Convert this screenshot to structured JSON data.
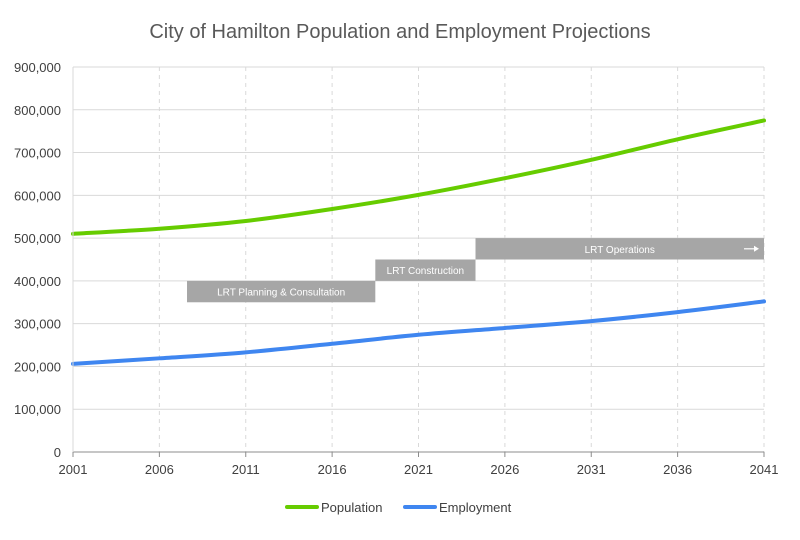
{
  "chart_data": {
    "type": "line",
    "title": "City of Hamilton Population and Employment Projections",
    "xlabel": "",
    "ylabel": "",
    "xlim": [
      2001,
      2041
    ],
    "ylim": [
      0,
      900000
    ],
    "x_ticks": [
      2001,
      2006,
      2011,
      2016,
      2021,
      2026,
      2031,
      2036,
      2041
    ],
    "x_tick_labels": [
      "2001",
      "2006",
      "2011",
      "2016",
      "2021",
      "2026",
      "2031",
      "2036",
      "2041"
    ],
    "y_ticks": [
      0,
      100000,
      200000,
      300000,
      400000,
      500000,
      600000,
      700000,
      800000,
      900000
    ],
    "y_tick_labels": [
      "0",
      "100,000",
      "200,000",
      "300,000",
      "400,000",
      "500,000",
      "600,000",
      "700,000",
      "800,000",
      "900,000"
    ],
    "grid": {
      "horizontal": "solid",
      "vertical": "dashed"
    },
    "legend_position": "bottom",
    "series": [
      {
        "name": "Population",
        "color": "#66cc00",
        "x": [
          2001,
          2006,
          2011,
          2016,
          2021,
          2026,
          2031,
          2036,
          2041
        ],
        "values": [
          510000,
          522000,
          540000,
          568000,
          601000,
          640000,
          683000,
          731000,
          775000
        ]
      },
      {
        "name": "Employment",
        "color": "#3f86f0",
        "x": [
          2001,
          2006,
          2011,
          2016,
          2021,
          2026,
          2031,
          2036,
          2041
        ],
        "values": [
          206000,
          219000,
          233000,
          253000,
          274000,
          290000,
          306000,
          327000,
          352000
        ]
      }
    ],
    "annotations": [
      {
        "text": "LRT Planning  & Consultation",
        "x_start": 2007.6,
        "x_end": 2018.5,
        "y_low": 350000,
        "y_high": 400000,
        "color": "#a6a6a6",
        "arrow": false
      },
      {
        "text": "LRT Construction",
        "x_start": 2018.5,
        "x_end": 2024.3,
        "y_low": 400000,
        "y_high": 450000,
        "color": "#a6a6a6",
        "arrow": false
      },
      {
        "text": "LRT Operations",
        "x_start": 2024.3,
        "x_end": 2041,
        "y_low": 450000,
        "y_high": 500000,
        "color": "#a6a6a6",
        "arrow": true
      }
    ]
  }
}
